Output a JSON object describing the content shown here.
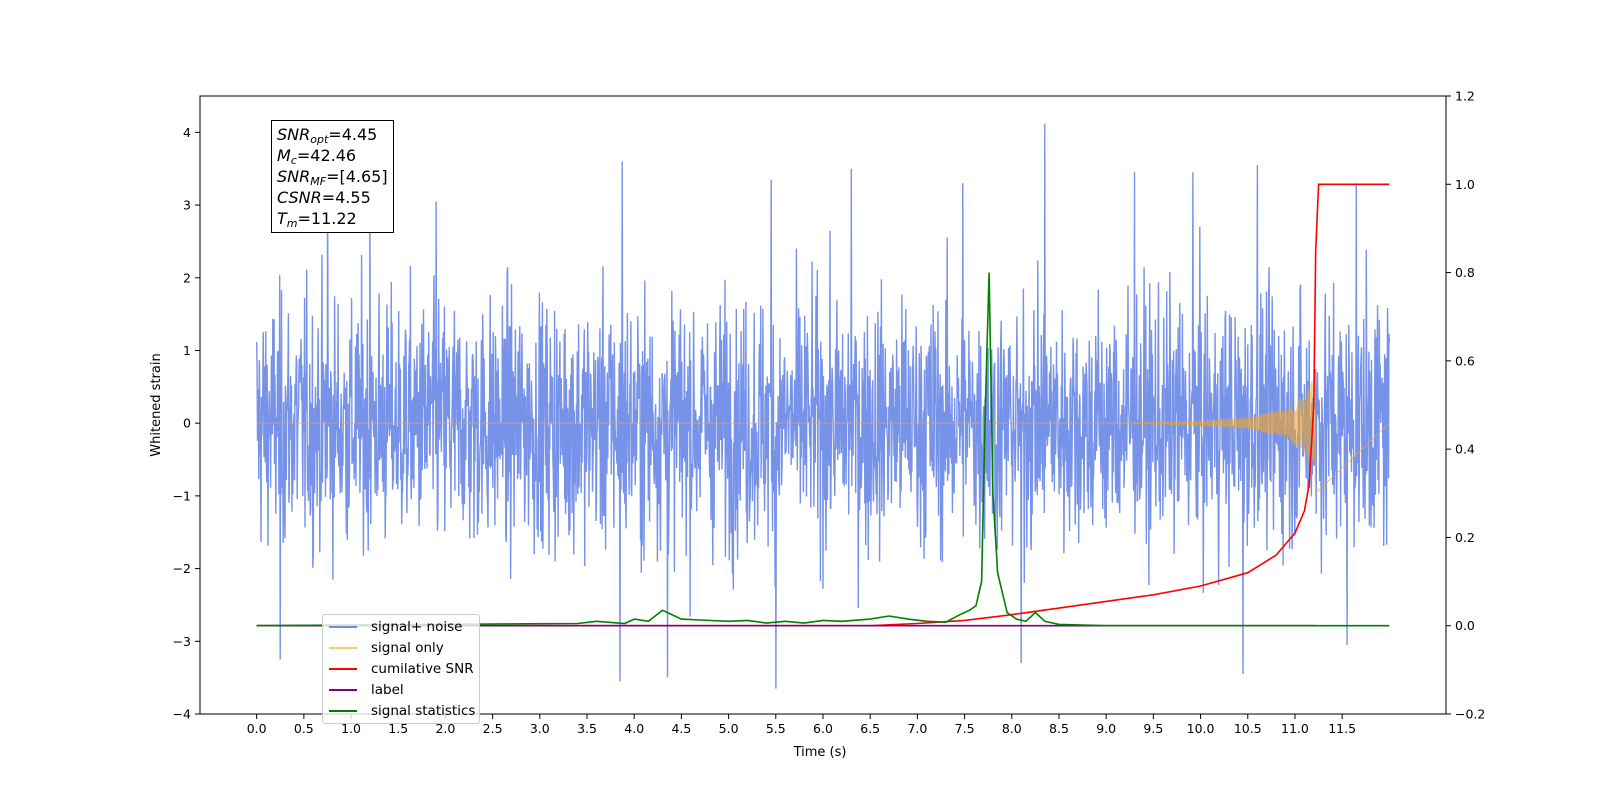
{
  "chart_data": {
    "type": "line",
    "xlabel": "Time (s)",
    "ylabel": "Whitened strain",
    "xlim": [
      -0.6,
      12.6
    ],
    "ylim": [
      -4.0,
      4.5
    ],
    "y2lim": [
      -0.2,
      1.2
    ],
    "x_ticks": [
      0.0,
      0.5,
      1.0,
      1.5,
      2.0,
      2.5,
      3.0,
      3.5,
      4.0,
      4.5,
      5.0,
      5.5,
      6.0,
      6.5,
      7.0,
      7.5,
      8.0,
      8.5,
      9.0,
      9.5,
      10.0,
      10.5,
      11.0,
      11.5
    ],
    "x_tick_labels": [
      "0.0",
      "0.5",
      "1.0",
      "1.5",
      "2.0",
      "2.5",
      "3.0",
      "3.5",
      "4.0",
      "4.5",
      "5.0",
      "5.5",
      "6.0",
      "6.5",
      "7.0",
      "7.5",
      "8.0",
      "8.5",
      "9.0",
      "9.5",
      "10.0",
      "10.5",
      "11.0",
      "11.5"
    ],
    "y_ticks": [
      -4,
      -3,
      -2,
      -1,
      0,
      1,
      2,
      3,
      4
    ],
    "y_tick_labels": [
      "−4",
      "−3",
      "−2",
      "−1",
      "0",
      "1",
      "2",
      "3",
      "4"
    ],
    "y2_ticks": [
      -0.2,
      0.0,
      0.2,
      0.4,
      0.6,
      0.8,
      1.0,
      1.2
    ],
    "y2_tick_labels": [
      "−0.2",
      "0.0",
      "0.2",
      "0.4",
      "0.6",
      "0.8",
      "1.0",
      "1.2"
    ],
    "grid": false,
    "legend_position": "lower-left",
    "series": [
      {
        "name": "signal+ noise",
        "axis": "left",
        "color": "#6f8ce8",
        "x_range": [
          0.0,
          12.0
        ],
        "values_min": -3.65,
        "values_max": 4.12,
        "peaks": [
          [
            0.75,
            3.3
          ],
          [
            1.2,
            3.05
          ],
          [
            1.9,
            3.05
          ],
          [
            3.87,
            3.6
          ],
          [
            5.45,
            3.35
          ],
          [
            6.3,
            3.5
          ],
          [
            7.48,
            3.3
          ],
          [
            8.35,
            4.12
          ],
          [
            9.3,
            3.45
          ],
          [
            9.92,
            3.45
          ],
          [
            10.6,
            3.55
          ],
          [
            11.65,
            3.3
          ],
          [
            0.25,
            -3.25
          ],
          [
            3.85,
            -3.55
          ],
          [
            4.35,
            -3.5
          ],
          [
            5.5,
            -3.65
          ],
          [
            8.1,
            -3.3
          ],
          [
            10.45,
            -3.45
          ],
          [
            11.55,
            -3.05
          ]
        ]
      },
      {
        "name": "signal only",
        "axis": "left",
        "color": "#f5a623",
        "x": [
          0.0,
          9.0,
          10.0,
          10.5,
          10.9,
          11.1,
          11.2,
          11.22
        ],
        "envelope": [
          0.0,
          0.0,
          0.03,
          0.08,
          0.2,
          0.4,
          0.65,
          1.1
        ]
      },
      {
        "name": "cumilative SNR",
        "axis": "right",
        "color": "#ff0000",
        "x": [
          0.0,
          6.5,
          7.0,
          7.5,
          8.0,
          8.5,
          9.0,
          9.5,
          10.0,
          10.5,
          10.8,
          11.0,
          11.1,
          11.15,
          11.2,
          11.22,
          11.25,
          12.0
        ],
        "values": [
          0.0,
          0.0,
          0.005,
          0.012,
          0.025,
          0.04,
          0.055,
          0.07,
          0.09,
          0.12,
          0.16,
          0.21,
          0.26,
          0.32,
          0.5,
          0.85,
          1.0,
          1.0
        ]
      },
      {
        "name": "label",
        "axis": "right",
        "color": "#800080",
        "x": [
          0.0,
          11.22
        ],
        "values": [
          0.0,
          0.0
        ]
      },
      {
        "name": "signal statistics",
        "axis": "right",
        "color": "#008000",
        "x": [
          0.0,
          3.4,
          3.6,
          3.9,
          4.0,
          4.15,
          4.3,
          4.5,
          4.7,
          5.0,
          5.2,
          5.4,
          5.6,
          5.8,
          6.0,
          6.2,
          6.5,
          6.7,
          6.9,
          7.1,
          7.3,
          7.45,
          7.55,
          7.62,
          7.68,
          7.72,
          7.76,
          7.8,
          7.85,
          7.95,
          8.05,
          8.15,
          8.25,
          8.35,
          8.5,
          9.0,
          10.0,
          12.0
        ],
        "values": [
          0.0,
          0.005,
          0.01,
          0.005,
          0.015,
          0.01,
          0.035,
          0.015,
          0.013,
          0.01,
          0.012,
          0.006,
          0.01,
          0.006,
          0.012,
          0.01,
          0.015,
          0.022,
          0.015,
          0.01,
          0.008,
          0.025,
          0.035,
          0.045,
          0.1,
          0.5,
          0.8,
          0.3,
          0.12,
          0.03,
          0.015,
          0.01,
          0.03,
          0.01,
          0.003,
          0.0,
          0.0,
          0.0
        ]
      }
    ],
    "annotation": {
      "snr_opt": "4.45",
      "mc": "42.46",
      "snr_mf": "[4.65]",
      "csnr": "4.55",
      "tm": "11.22"
    }
  },
  "legend": {
    "items": [
      "signal+ noise",
      "signal only",
      "cumilative SNR",
      "label",
      "signal statistics"
    ],
    "colors": [
      "#6f8ce8",
      "#ffc966",
      "#ff0000",
      "#800080",
      "#008000"
    ]
  },
  "infobox": {
    "snr_opt_sym": "SNR",
    "snr_opt_sub": "opt",
    "snr_opt_val": "=4.45",
    "mc_sym": "M",
    "mc_sub": "c",
    "mc_val": "=42.46",
    "snr_mf_sym": "SNR",
    "snr_mf_sub": "MF",
    "snr_mf_val": "=[4.65]",
    "csnr_sym": "CSNR",
    "csnr_val": "=4.55",
    "tm_sym": "T",
    "tm_sub": "m",
    "tm_val": "=11.22"
  }
}
